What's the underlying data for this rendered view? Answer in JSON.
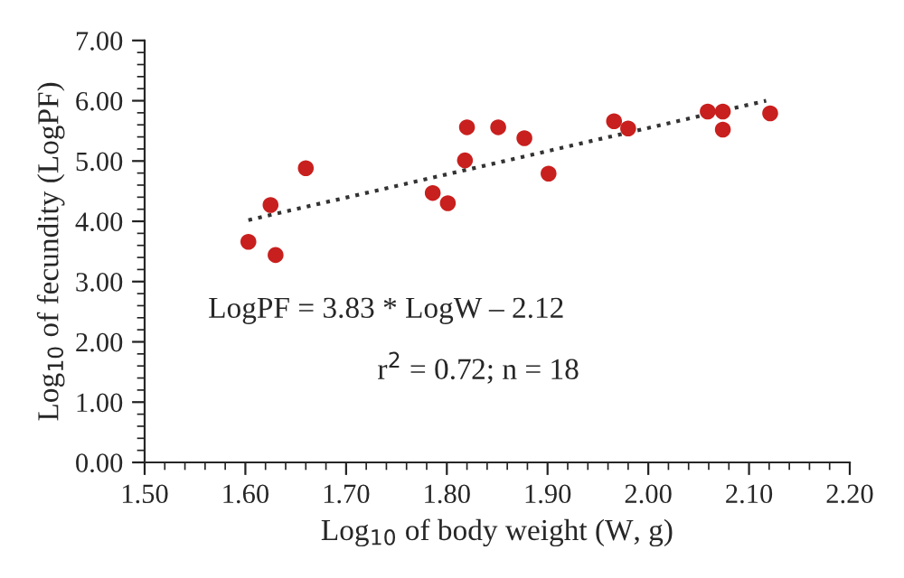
{
  "chart_data": {
    "type": "scatter",
    "xlabel": "Log$_{10}$ of body weight (W, g)",
    "ylabel": "Log$_{10}$ of fecundity (LogPF)",
    "xlim": [
      1.5,
      2.2
    ],
    "xticks": [
      {
        "value": 1.5,
        "label": "1.50"
      },
      {
        "value": 1.6,
        "label": "1.60"
      },
      {
        "value": 1.7,
        "label": "1.70"
      },
      {
        "value": 1.8,
        "label": "1.80"
      },
      {
        "value": 1.9,
        "label": "1.90"
      },
      {
        "value": 2.0,
        "label": "2.00"
      },
      {
        "value": 2.1,
        "label": "2.10"
      },
      {
        "value": 2.2,
        "label": "2.20"
      }
    ],
    "ylim": [
      0,
      7
    ],
    "yticks": [
      {
        "value": 0,
        "label": "0.00"
      },
      {
        "value": 1,
        "label": "1.00"
      },
      {
        "value": 2,
        "label": "2.00"
      },
      {
        "value": 3,
        "label": "3.00"
      },
      {
        "value": 4,
        "label": "4.00"
      },
      {
        "value": 5,
        "label": "5.00"
      },
      {
        "value": 6,
        "label": "6.00"
      },
      {
        "value": 7,
        "label": "7.00"
      }
    ],
    "series": [
      {
        "color": "#c8201e",
        "marker": "circle",
        "x": [
          1.603,
          1.625,
          1.63,
          1.66,
          1.786,
          1.801,
          1.82,
          1.818,
          1.851,
          1.877,
          1.901,
          1.966,
          1.98,
          2.059,
          2.074,
          2.074,
          2.121
        ],
        "values": [
          3.66,
          4.27,
          3.44,
          4.88,
          4.47,
          4.3,
          5.56,
          5.01,
          5.56,
          5.38,
          4.79,
          5.66,
          5.54,
          5.82,
          5.82,
          5.52,
          5.79
        ]
      },
      {
        "type": "line",
        "color": "#333333",
        "line_style": "dotted",
        "marker": "none",
        "x": [
          1.603,
          2.117
        ],
        "values": [
          4.02,
          6.0
        ]
      }
    ],
    "annotations": [
      "LogPF = 3.83 * LogW – 2.12",
      "r$^{2}$ = 0.72; n = 18"
    ],
    "grid": false,
    "legend": false
  }
}
